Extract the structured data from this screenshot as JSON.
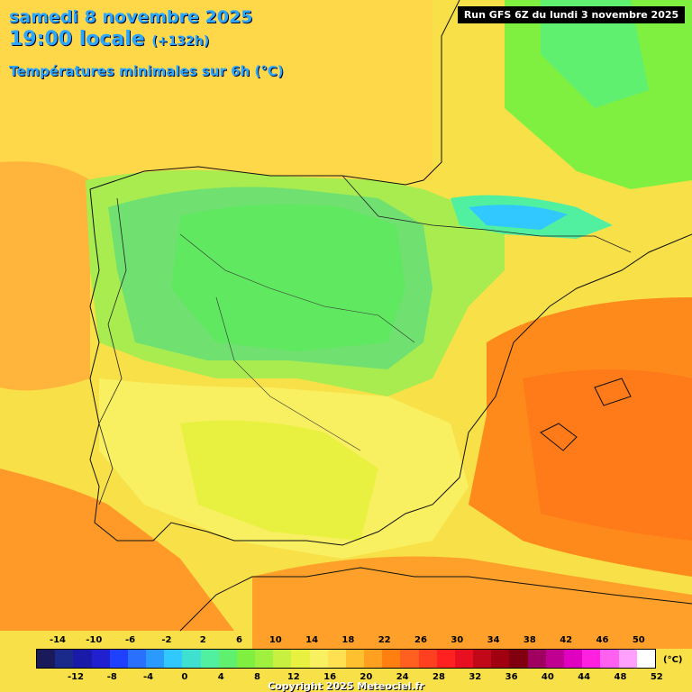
{
  "header": {
    "date": "samedi 8 novembre 2025",
    "time": "19:00 locale",
    "lead": "(+132h)",
    "subtitle": "Températures minimales sur 6h (°C)",
    "run": "Run GFS 6Z du lundi 3 novembre 2025"
  },
  "legend": {
    "unit": "(°C)",
    "top_labels": [
      "-14",
      "-10",
      "-6",
      "-2",
      "2",
      "6",
      "10",
      "14",
      "18",
      "22",
      "26",
      "30",
      "34",
      "38",
      "42",
      "46",
      "50"
    ],
    "bottom_labels": [
      "-12",
      "-8",
      "-4",
      "0",
      "4",
      "8",
      "12",
      "16",
      "20",
      "24",
      "28",
      "32",
      "36",
      "40",
      "44",
      "48",
      "52"
    ],
    "colors": [
      "#1a1a5a",
      "#1a2a8a",
      "#1a1aa8",
      "#2020d0",
      "#2040ff",
      "#2a70ff",
      "#2a9aff",
      "#30c8ff",
      "#40e0d0",
      "#50f0a0",
      "#60f070",
      "#80f040",
      "#a0f040",
      "#c8f040",
      "#e8f040",
      "#f8f060",
      "#ffe050",
      "#ffc030",
      "#ffa020",
      "#ff8010",
      "#ff6020",
      "#ff4020",
      "#ff2020",
      "#e81020",
      "#c00818",
      "#a00010",
      "#800010",
      "#a00060",
      "#c00090",
      "#e000c0",
      "#ff20e0",
      "#ff60f0",
      "#ffa0ff",
      "#ffffff"
    ]
  },
  "copyright": "Copyright 2025 Meteociel.fr"
}
